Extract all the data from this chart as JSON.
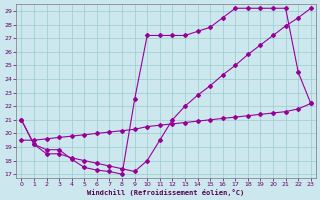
{
  "xlabel": "Windchill (Refroidissement éolien,°C)",
  "bg_color": "#cce8ee",
  "line_color": "#990099",
  "grid_color": "#99cccc",
  "xlim_min": -0.4,
  "xlim_max": 23.4,
  "ylim_min": 16.7,
  "ylim_max": 29.5,
  "xticks": [
    0,
    1,
    2,
    3,
    4,
    5,
    6,
    7,
    8,
    9,
    10,
    11,
    12,
    13,
    14,
    15,
    16,
    17,
    18,
    19,
    20,
    21,
    22,
    23
  ],
  "yticks": [
    17,
    18,
    19,
    20,
    21,
    22,
    23,
    24,
    25,
    26,
    27,
    28,
    29
  ],
  "line1_x": [
    0,
    1,
    2,
    3,
    4,
    5,
    6,
    7,
    8,
    9,
    10,
    11,
    12,
    13,
    14,
    15,
    16,
    17,
    18,
    19,
    20,
    21,
    22,
    23
  ],
  "line1_y": [
    21.0,
    19.2,
    18.8,
    18.8,
    18.1,
    17.5,
    17.3,
    17.2,
    17.0,
    22.5,
    27.2,
    27.2,
    27.2,
    27.2,
    27.5,
    27.8,
    28.5,
    29.2,
    29.2,
    29.2,
    29.2,
    29.2,
    24.5,
    22.2
  ],
  "line2_x": [
    0,
    1,
    2,
    3,
    4,
    5,
    6,
    7,
    8,
    9,
    10,
    11,
    12,
    13,
    14,
    15,
    16,
    17,
    18,
    19,
    20,
    21,
    22,
    23
  ],
  "line2_y": [
    21.0,
    19.2,
    18.5,
    18.5,
    18.2,
    18.0,
    17.8,
    17.6,
    17.4,
    17.2,
    18.0,
    19.5,
    21.0,
    22.0,
    22.8,
    23.5,
    24.3,
    25.0,
    25.8,
    26.5,
    27.2,
    27.9,
    28.5,
    29.2
  ],
  "line3_x": [
    0,
    1,
    2,
    3,
    4,
    5,
    6,
    7,
    8,
    9,
    10,
    11,
    12,
    13,
    14,
    15,
    16,
    17,
    18,
    19,
    20,
    21,
    22,
    23
  ],
  "line3_y": [
    19.5,
    19.5,
    19.6,
    19.7,
    19.8,
    19.9,
    20.0,
    20.1,
    20.2,
    20.3,
    20.5,
    20.6,
    20.7,
    20.8,
    20.9,
    21.0,
    21.1,
    21.2,
    21.3,
    21.4,
    21.5,
    21.6,
    21.8,
    22.2
  ]
}
